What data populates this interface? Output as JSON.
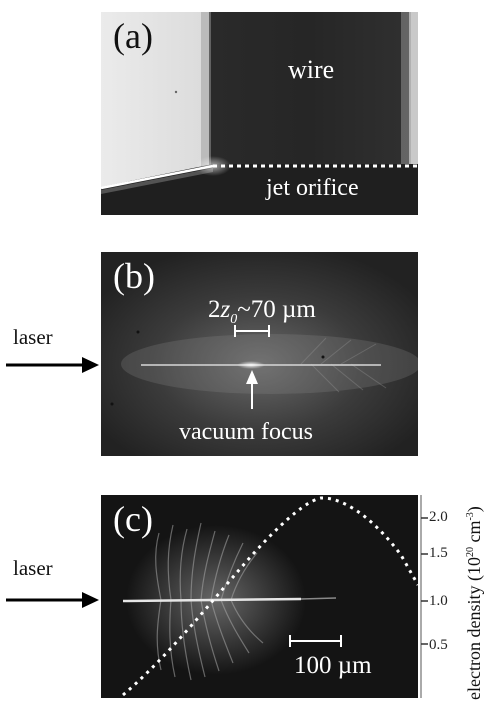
{
  "panel_a": {
    "label": "(a)",
    "wire_label": "wire",
    "orifice_label": "jet orifice"
  },
  "panel_b": {
    "label": "(b)",
    "side_label": "laser",
    "scale_label": "~70 µm",
    "focus_label": "vacuum focus"
  },
  "panel_c": {
    "label": "(c)",
    "side_label": "laser",
    "scale_label": "100 µm",
    "axis": {
      "title_main": "electron density (10",
      "title_exp": "20",
      "title_unit": " cm",
      "title_unit_exp": "-3",
      "title_close": ")",
      "ticks": [
        "0.5",
        "1.0",
        "1.5",
        "2.0"
      ]
    }
  },
  "colors": {
    "background": "#ffffff",
    "panel_dark": "#1a1a1a",
    "overlay_white": "#ffffff"
  }
}
